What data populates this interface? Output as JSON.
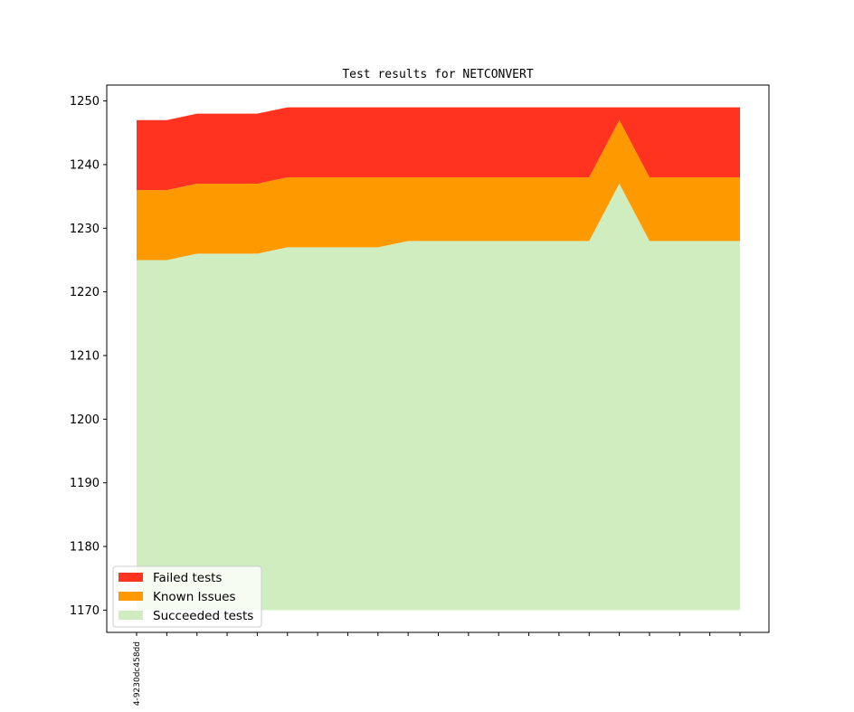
{
  "chart_data": {
    "type": "area",
    "stacked": true,
    "title": "Test results for NETCONVERT",
    "xlabel": "",
    "ylabel": "",
    "ylim": [
      1166.5,
      1252.5
    ],
    "yticks": [
      1170,
      1180,
      1190,
      1200,
      1210,
      1220,
      1230,
      1240,
      1250
    ],
    "x_tick_labels": [
      "4-9230dc458dd"
    ],
    "num_points": 21,
    "grid": false,
    "legend_position": "lower-left",
    "baseline": 1170,
    "series": [
      {
        "name": "Succeeded tests",
        "color": "#cfedbf",
        "top": [
          1225,
          1225,
          1226,
          1226,
          1226,
          1227,
          1227,
          1227,
          1227,
          1228,
          1228,
          1228,
          1228,
          1228,
          1228,
          1228,
          1237,
          1228,
          1228,
          1228,
          1228
        ]
      },
      {
        "name": "Known Issues",
        "color": "#ff9900",
        "top": [
          1236,
          1236,
          1237,
          1237,
          1237,
          1238,
          1238,
          1238,
          1238,
          1238,
          1238,
          1238,
          1238,
          1238,
          1238,
          1238,
          1247,
          1238,
          1238,
          1238,
          1238
        ]
      },
      {
        "name": "Failed tests",
        "color": "#ff331f",
        "top": [
          1247,
          1247,
          1248,
          1248,
          1248,
          1249,
          1249,
          1249,
          1249,
          1249,
          1249,
          1249,
          1249,
          1249,
          1249,
          1249,
          1249,
          1249,
          1249,
          1249,
          1249
        ]
      }
    ],
    "legend_order": [
      "Failed tests",
      "Known Issues",
      "Succeeded tests"
    ]
  }
}
